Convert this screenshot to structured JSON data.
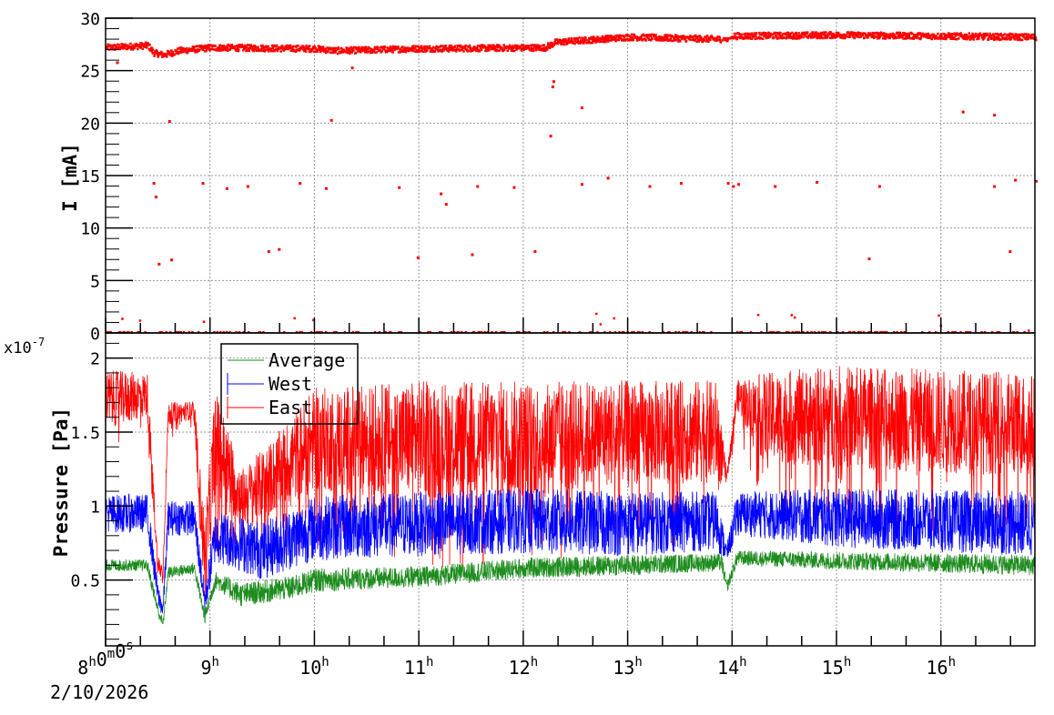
{
  "chart_data": [
    {
      "type": "scatter",
      "title": "",
      "ylabel": "I [mA]",
      "xlabel": "",
      "xlim_hours": [
        8.0,
        16.9
      ],
      "ylim": [
        0,
        30
      ],
      "yticks": [
        "0",
        "5",
        "10",
        "15",
        "20",
        "25",
        "30"
      ],
      "grid": true,
      "color": "#ff0000",
      "baseline_knots": [
        [
          8.0,
          27.3
        ],
        [
          8.4,
          27.5
        ],
        [
          8.45,
          26.8
        ],
        [
          8.55,
          26.6
        ],
        [
          8.7,
          27.0
        ],
        [
          9.0,
          27.3
        ],
        [
          10.0,
          27.2
        ],
        [
          10.2,
          27.0
        ],
        [
          11.0,
          27.2
        ],
        [
          12.2,
          27.3
        ],
        [
          12.3,
          27.8
        ],
        [
          13.0,
          28.3
        ],
        [
          13.9,
          28.1
        ],
        [
          14.0,
          28.4
        ],
        [
          15.0,
          28.5
        ],
        [
          16.9,
          28.3
        ]
      ],
      "outliers": [
        [
          8.1,
          25.8
        ],
        [
          8.45,
          14.3
        ],
        [
          8.47,
          13.0
        ],
        [
          8.5,
          6.6
        ],
        [
          8.6,
          20.2
        ],
        [
          8.62,
          7.0
        ],
        [
          8.92,
          14.3
        ],
        [
          9.15,
          13.8
        ],
        [
          9.35,
          14.0
        ],
        [
          9.55,
          7.8
        ],
        [
          9.65,
          8.0
        ],
        [
          9.85,
          14.3
        ],
        [
          10.15,
          20.3
        ],
        [
          10.1,
          13.8
        ],
        [
          10.35,
          25.3
        ],
        [
          10.8,
          13.9
        ],
        [
          10.98,
          7.2
        ],
        [
          11.2,
          13.3
        ],
        [
          11.25,
          12.3
        ],
        [
          11.5,
          7.5
        ],
        [
          11.55,
          14.0
        ],
        [
          11.9,
          13.9
        ],
        [
          12.1,
          7.8
        ],
        [
          12.25,
          18.8
        ],
        [
          12.27,
          23.5
        ],
        [
          12.28,
          24.0
        ],
        [
          12.55,
          21.5
        ],
        [
          12.55,
          14.2
        ],
        [
          12.8,
          14.8
        ],
        [
          13.2,
          14.0
        ],
        [
          13.5,
          14.3
        ],
        [
          13.95,
          14.3
        ],
        [
          14.0,
          14.0
        ],
        [
          14.05,
          14.2
        ],
        [
          14.4,
          14.0
        ],
        [
          14.8,
          14.4
        ],
        [
          15.3,
          7.1
        ],
        [
          15.4,
          14.0
        ],
        [
          16.2,
          21.1
        ],
        [
          16.5,
          20.8
        ],
        [
          16.5,
          14.0
        ],
        [
          16.65,
          7.8
        ],
        [
          16.7,
          14.6
        ],
        [
          16.9,
          14.5
        ]
      ],
      "zero_points_fraction": 0.25
    },
    {
      "type": "line",
      "title": "",
      "ylabel": "Pressure [Pa]",
      "xlabel": "",
      "x_start_label": "8h0m0s",
      "date_label": "2/10/2026",
      "exponent_label": "x10",
      "exponent_value": "-7",
      "xticks": [
        {
          "h": "8",
          "m": "0",
          "s": "0"
        },
        {
          "h": "9"
        },
        {
          "h": "10"
        },
        {
          "h": "11"
        },
        {
          "h": "12"
        },
        {
          "h": "13"
        },
        {
          "h": "14"
        },
        {
          "h": "15"
        },
        {
          "h": "16"
        }
      ],
      "xlim_hours": [
        8.0,
        16.9
      ],
      "ylim": [
        0.055,
        2.17
      ],
      "yticks": [
        "0.5",
        "1",
        "1.5",
        "2"
      ],
      "grid": true,
      "legend_position": "top-left",
      "series": [
        {
          "name": "Average",
          "color": "#1e8c1e",
          "knots": [
            [
              8.0,
              0.6,
              0.04
            ],
            [
              8.4,
              0.6,
              0.04
            ],
            [
              8.5,
              0.3,
              0.05
            ],
            [
              8.55,
              0.2,
              0.03
            ],
            [
              8.6,
              0.55,
              0.04
            ],
            [
              8.85,
              0.58,
              0.04
            ],
            [
              8.95,
              0.25,
              0.05
            ],
            [
              9.05,
              0.5,
              0.06
            ],
            [
              9.3,
              0.4,
              0.08
            ],
            [
              9.8,
              0.45,
              0.08
            ],
            [
              10.0,
              0.5,
              0.08
            ],
            [
              11.0,
              0.52,
              0.07
            ],
            [
              12.0,
              0.58,
              0.07
            ],
            [
              13.0,
              0.6,
              0.07
            ],
            [
              13.9,
              0.62,
              0.06
            ],
            [
              13.95,
              0.45,
              0.04
            ],
            [
              14.05,
              0.65,
              0.05
            ],
            [
              15.0,
              0.63,
              0.06
            ],
            [
              16.9,
              0.6,
              0.07
            ]
          ]
        },
        {
          "name": "West",
          "color": "#0000ff",
          "knots": [
            [
              8.0,
              0.95,
              0.13
            ],
            [
              8.4,
              0.95,
              0.13
            ],
            [
              8.5,
              0.4,
              0.08
            ],
            [
              8.55,
              0.3,
              0.06
            ],
            [
              8.6,
              0.92,
              0.12
            ],
            [
              8.85,
              0.92,
              0.12
            ],
            [
              8.95,
              0.35,
              0.1
            ],
            [
              9.05,
              0.8,
              0.18
            ],
            [
              9.5,
              0.7,
              0.2
            ],
            [
              10.0,
              0.85,
              0.22
            ],
            [
              11.0,
              0.88,
              0.22
            ],
            [
              12.0,
              0.9,
              0.22
            ],
            [
              13.0,
              0.88,
              0.22
            ],
            [
              13.85,
              0.9,
              0.2
            ],
            [
              13.95,
              0.68,
              0.06
            ],
            [
              14.05,
              0.95,
              0.15
            ],
            [
              15.0,
              0.92,
              0.2
            ],
            [
              16.9,
              0.88,
              0.22
            ]
          ]
        },
        {
          "name": "East",
          "color": "#ff0000",
          "knots": [
            [
              8.0,
              1.72,
              0.2
            ],
            [
              8.4,
              1.75,
              0.15
            ],
            [
              8.5,
              0.6,
              0.08
            ],
            [
              8.55,
              0.55,
              0.05
            ],
            [
              8.6,
              1.62,
              0.08
            ],
            [
              8.85,
              1.65,
              0.06
            ],
            [
              8.95,
              0.6,
              0.3
            ],
            [
              9.05,
              1.45,
              0.35
            ],
            [
              9.3,
              1.05,
              0.2
            ],
            [
              9.6,
              1.2,
              0.25
            ],
            [
              10.0,
              1.45,
              0.35
            ],
            [
              11.0,
              1.45,
              0.4
            ],
            [
              12.0,
              1.45,
              0.4
            ],
            [
              13.0,
              1.5,
              0.35
            ],
            [
              13.85,
              1.5,
              0.35
            ],
            [
              13.95,
              1.2,
              0.03
            ],
            [
              14.05,
              1.75,
              0.1
            ],
            [
              14.3,
              1.6,
              0.3
            ],
            [
              15.0,
              1.6,
              0.35
            ],
            [
              16.9,
              1.55,
              0.35
            ]
          ]
        }
      ]
    }
  ]
}
